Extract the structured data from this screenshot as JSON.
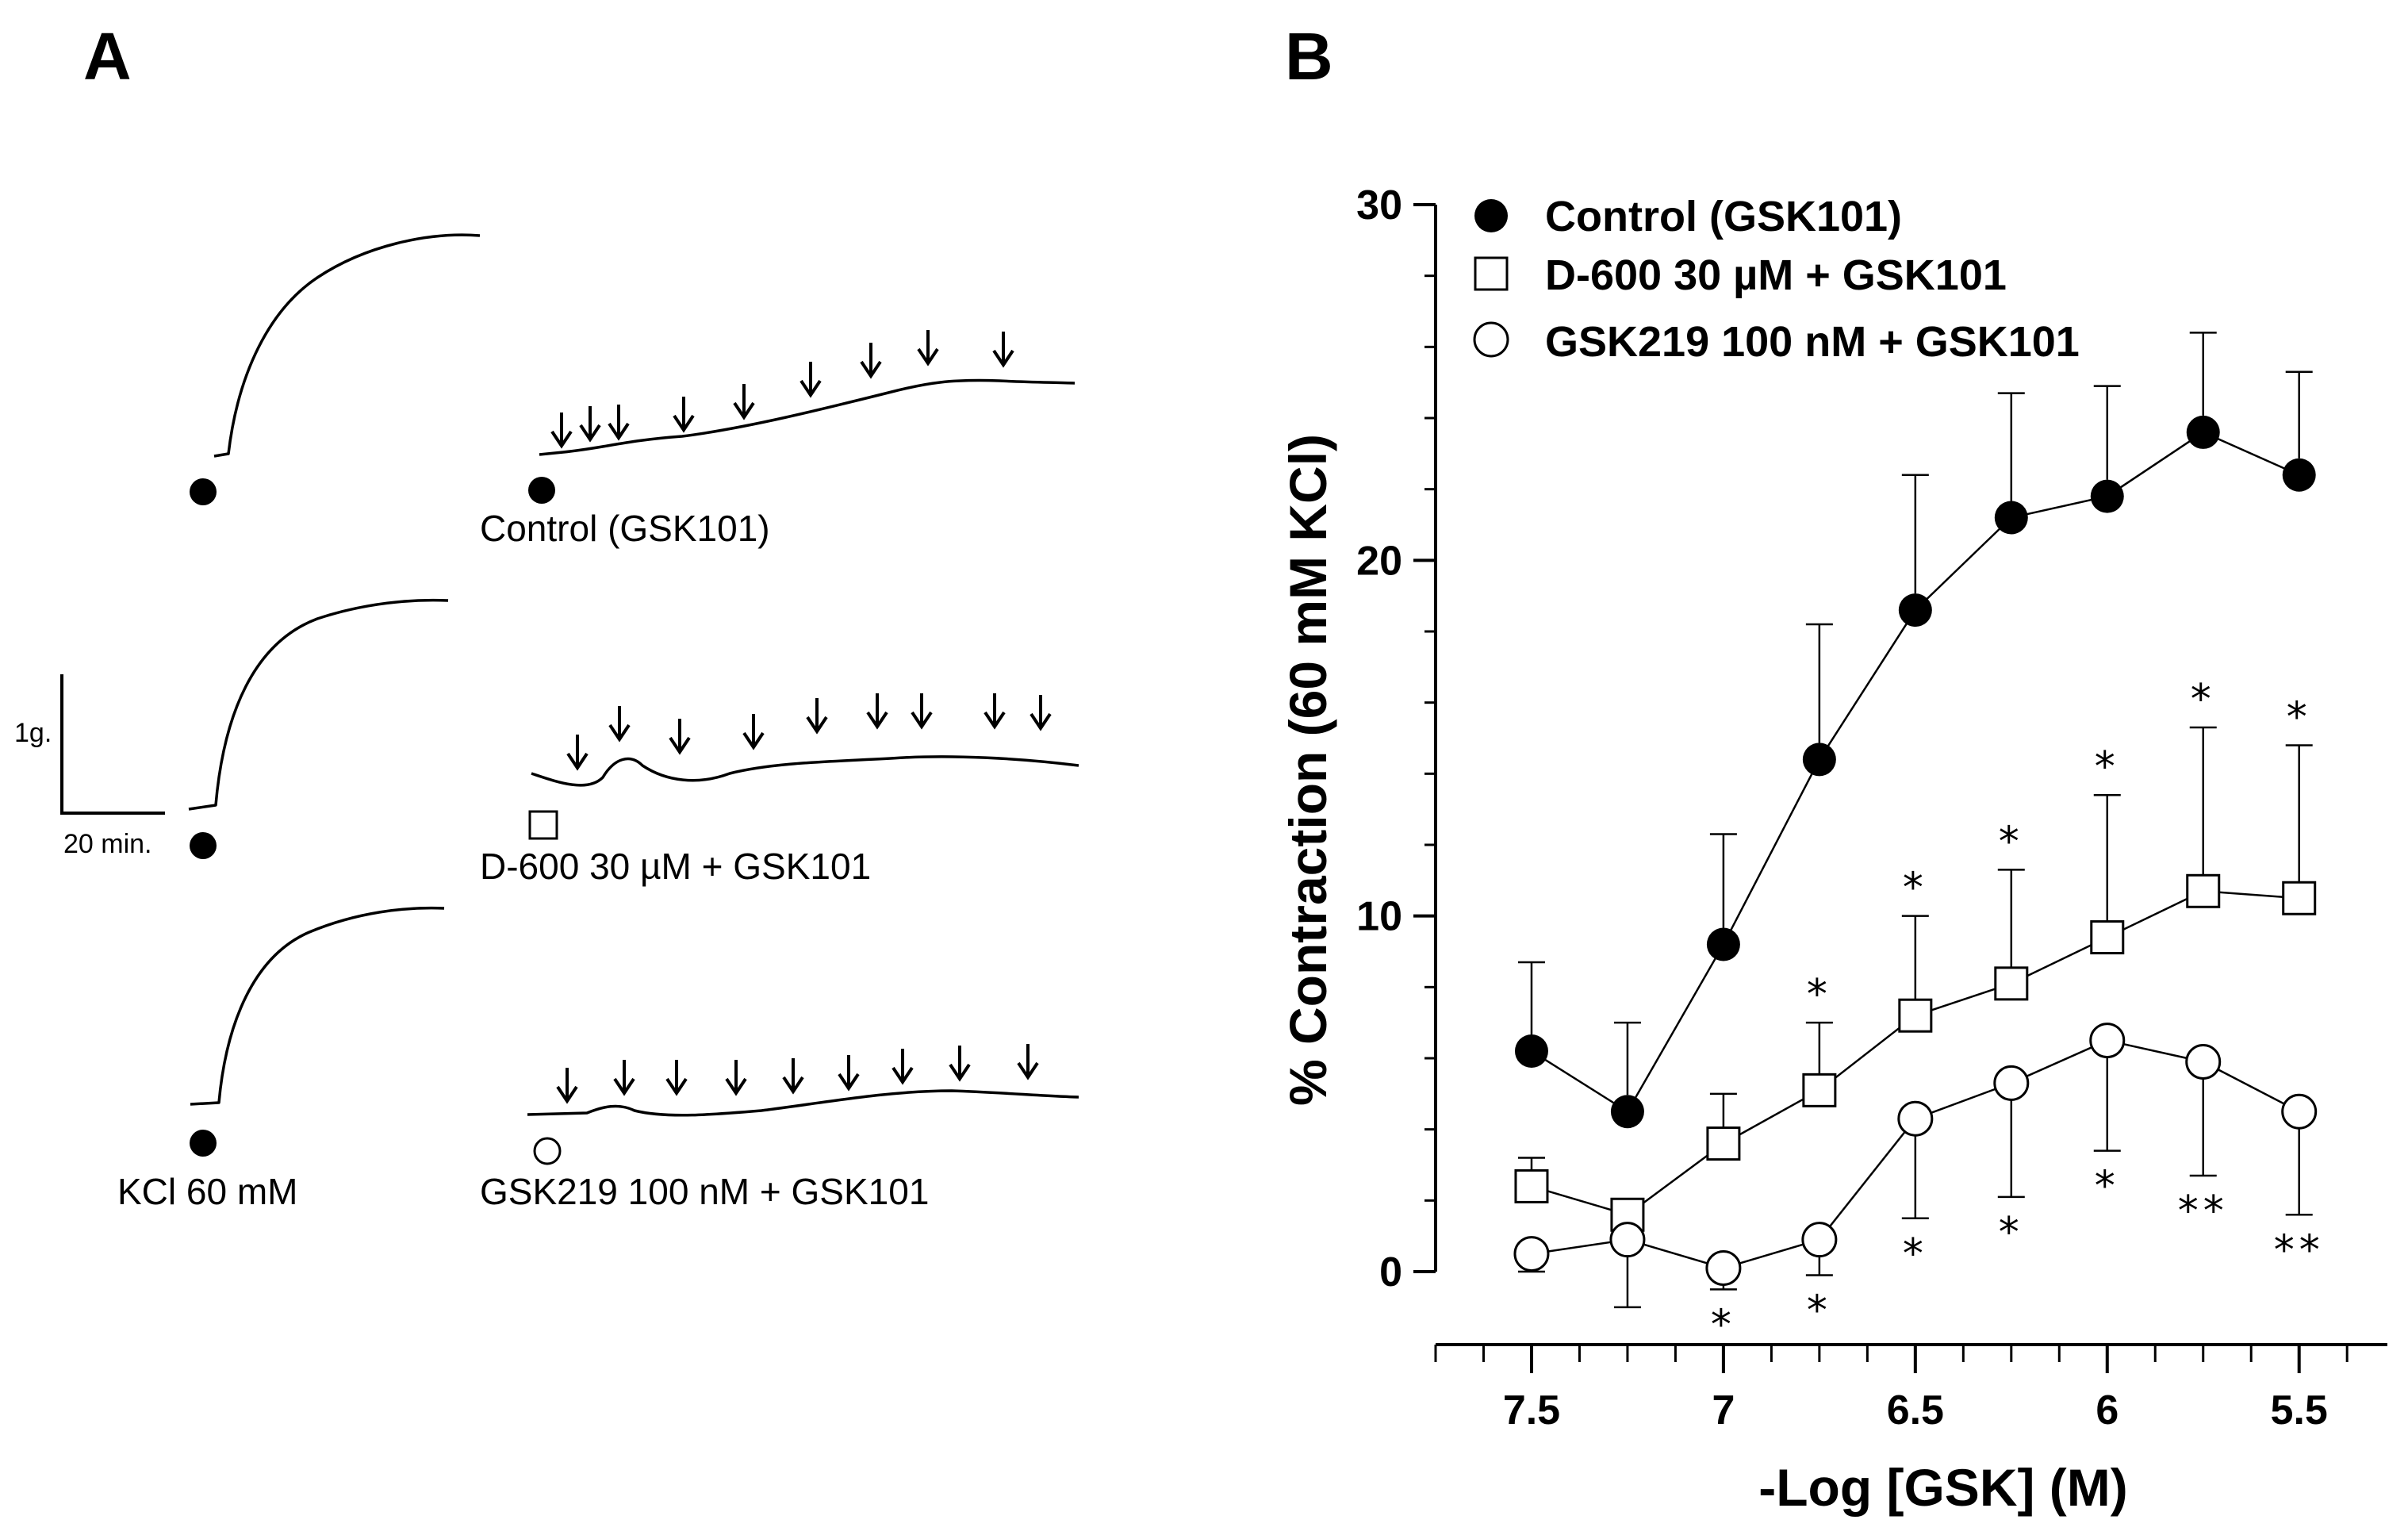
{
  "panels": {
    "a_letter": "A",
    "b_letter": "B"
  },
  "panel_a": {
    "scale_bar_y": "1g.",
    "scale_bar_x": "20 min.",
    "kcl_label": "KCl 60 mM",
    "trace_labels": [
      "Control (GSK101)",
      "D-600 30 µM + GSK101",
      "GSK219 100 nM + GSK101"
    ]
  },
  "chart_data": {
    "type": "scatter",
    "xlabel": "-Log [GSK] (M)",
    "ylabel": "% Contraction (60 mM KCl)",
    "x": [
      7.5,
      7.25,
      7.0,
      6.75,
      6.5,
      6.25,
      6.0,
      5.75,
      5.5
    ],
    "xticks": [
      "7.5",
      "7",
      "6.5",
      "6",
      "5.5"
    ],
    "xtick_values": [
      7.5,
      7.0,
      6.5,
      6.0,
      5.5
    ],
    "xlim": [
      7.75,
      5.27
    ],
    "x_reversed": true,
    "ylim": [
      0,
      30
    ],
    "yticks": [
      0,
      10,
      20,
      30
    ],
    "legend_position": "top-left",
    "series": [
      {
        "name": "Control (GSK101)",
        "marker": "filled-circle",
        "values": [
          6.2,
          4.5,
          9.2,
          14.4,
          18.6,
          21.2,
          21.8,
          23.6,
          22.4
        ],
        "error_up": [
          2.5,
          2.5,
          3.1,
          3.8,
          3.8,
          3.5,
          3.1,
          2.8,
          2.9
        ],
        "error_down": [
          0,
          0,
          0,
          0,
          0,
          0,
          0,
          0,
          0
        ],
        "significance": [
          "",
          "",
          "",
          "",
          "",
          "",
          "",
          "",
          ""
        ]
      },
      {
        "name": "D-600 30 µM + GSK101",
        "marker": "open-square",
        "values": [
          2.4,
          1.6,
          3.6,
          5.1,
          7.2,
          8.1,
          9.4,
          10.7,
          10.5
        ],
        "error_up": [
          0.8,
          0,
          1.4,
          1.9,
          2.8,
          3.2,
          4.0,
          4.6,
          4.3
        ],
        "error_down": [
          0,
          0,
          0,
          0,
          0,
          0,
          0,
          0,
          0
        ],
        "significance": [
          "",
          "",
          "",
          "*",
          "*",
          "*",
          "*",
          "*",
          "*"
        ]
      },
      {
        "name": "GSK219 100 nM + GSK101",
        "marker": "open-circle",
        "values": [
          0.5,
          0.9,
          0.1,
          0.9,
          4.3,
          5.3,
          6.5,
          5.9,
          4.5
        ],
        "error_up": [
          0,
          0,
          0,
          0,
          0,
          0,
          0,
          0,
          0
        ],
        "error_down": [
          0.5,
          2.0,
          0.6,
          1.0,
          2.8,
          3.2,
          3.1,
          3.2,
          2.9
        ],
        "significance": [
          "",
          "",
          "*",
          "*",
          "*",
          "*",
          "*",
          "**",
          "**"
        ]
      }
    ]
  }
}
